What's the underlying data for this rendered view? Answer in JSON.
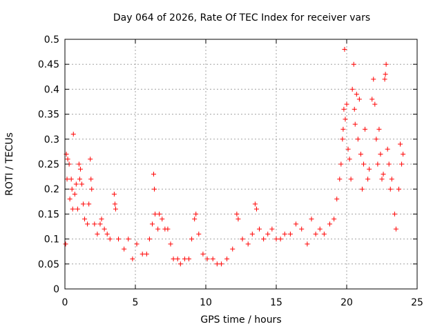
{
  "chart_data": {
    "type": "scatter",
    "title": "Day 064 of 2026, Rate Of TEC Index for receiver vars",
    "xlabel": "GPS time / hours",
    "ylabel": "ROTI / TECUs",
    "xlim": [
      0,
      25
    ],
    "ylim": [
      0,
      0.5
    ],
    "x_ticks": [
      "0",
      "5",
      "10",
      "15",
      "20",
      "25"
    ],
    "y_ticks": [
      "0",
      "0.05",
      "0.1",
      "0.15",
      "0.2",
      "0.25",
      "0.3",
      "0.35",
      "0.4",
      "0.45",
      "0.5"
    ],
    "grid": true,
    "marker": "+",
    "color": "#ff0000",
    "series": [
      {
        "points": [
          [
            0.05,
            0.09
          ],
          [
            0.1,
            0.27
          ],
          [
            0.15,
            0.22
          ],
          [
            0.2,
            0.26
          ],
          [
            0.3,
            0.25
          ],
          [
            0.35,
            0.18
          ],
          [
            0.45,
            0.22
          ],
          [
            0.5,
            0.2
          ],
          [
            0.55,
            0.16
          ],
          [
            0.6,
            0.31
          ],
          [
            0.7,
            0.19
          ],
          [
            0.8,
            0.21
          ],
          [
            0.9,
            0.16
          ],
          [
            1.0,
            0.25
          ],
          [
            1.05,
            0.22
          ],
          [
            1.1,
            0.24
          ],
          [
            1.2,
            0.21
          ],
          [
            1.3,
            0.17
          ],
          [
            1.4,
            0.14
          ],
          [
            1.6,
            0.13
          ],
          [
            1.7,
            0.17
          ],
          [
            1.8,
            0.26
          ],
          [
            1.85,
            0.22
          ],
          [
            1.9,
            0.2
          ],
          [
            2.1,
            0.13
          ],
          [
            2.3,
            0.11
          ],
          [
            2.5,
            0.13
          ],
          [
            2.6,
            0.14
          ],
          [
            2.8,
            0.12
          ],
          [
            3.0,
            0.11
          ],
          [
            3.2,
            0.1
          ],
          [
            3.5,
            0.19
          ],
          [
            3.55,
            0.17
          ],
          [
            3.6,
            0.16
          ],
          [
            3.8,
            0.1
          ],
          [
            4.2,
            0.08
          ],
          [
            4.5,
            0.1
          ],
          [
            4.8,
            0.06
          ],
          [
            5.1,
            0.09
          ],
          [
            5.5,
            0.07
          ],
          [
            5.8,
            0.07
          ],
          [
            6.0,
            0.1
          ],
          [
            6.2,
            0.13
          ],
          [
            6.3,
            0.23
          ],
          [
            6.35,
            0.2
          ],
          [
            6.4,
            0.15
          ],
          [
            6.6,
            0.12
          ],
          [
            6.7,
            0.15
          ],
          [
            6.9,
            0.14
          ],
          [
            7.1,
            0.12
          ],
          [
            7.3,
            0.12
          ],
          [
            7.5,
            0.09
          ],
          [
            7.7,
            0.06
          ],
          [
            8.0,
            0.06
          ],
          [
            8.2,
            0.05
          ],
          [
            8.5,
            0.06
          ],
          [
            8.8,
            0.06
          ],
          [
            9.0,
            0.1
          ],
          [
            9.2,
            0.14
          ],
          [
            9.3,
            0.15
          ],
          [
            9.5,
            0.11
          ],
          [
            9.8,
            0.07
          ],
          [
            10.1,
            0.06
          ],
          [
            10.5,
            0.06
          ],
          [
            10.8,
            0.05
          ],
          [
            11.1,
            0.05
          ],
          [
            11.5,
            0.06
          ],
          [
            11.9,
            0.08
          ],
          [
            12.2,
            0.15
          ],
          [
            12.3,
            0.14
          ],
          [
            12.6,
            0.1
          ],
          [
            13.0,
            0.09
          ],
          [
            13.3,
            0.11
          ],
          [
            13.5,
            0.17
          ],
          [
            13.6,
            0.16
          ],
          [
            13.8,
            0.12
          ],
          [
            14.1,
            0.1
          ],
          [
            14.4,
            0.11
          ],
          [
            14.7,
            0.12
          ],
          [
            15.0,
            0.1
          ],
          [
            15.3,
            0.1
          ],
          [
            15.6,
            0.11
          ],
          [
            16.0,
            0.11
          ],
          [
            16.4,
            0.13
          ],
          [
            16.8,
            0.12
          ],
          [
            17.2,
            0.09
          ],
          [
            17.5,
            0.14
          ],
          [
            17.8,
            0.11
          ],
          [
            18.1,
            0.12
          ],
          [
            18.4,
            0.11
          ],
          [
            18.8,
            0.13
          ],
          [
            19.1,
            0.14
          ],
          [
            19.3,
            0.18
          ],
          [
            19.5,
            0.22
          ],
          [
            19.6,
            0.25
          ],
          [
            19.7,
            0.3
          ],
          [
            19.75,
            0.32
          ],
          [
            19.8,
            0.36
          ],
          [
            19.85,
            0.48
          ],
          [
            19.9,
            0.34
          ],
          [
            20.0,
            0.37
          ],
          [
            20.1,
            0.28
          ],
          [
            20.2,
            0.26
          ],
          [
            20.3,
            0.22
          ],
          [
            20.4,
            0.4
          ],
          [
            20.5,
            0.45
          ],
          [
            20.55,
            0.36
          ],
          [
            20.6,
            0.33
          ],
          [
            20.7,
            0.39
          ],
          [
            20.8,
            0.3
          ],
          [
            20.9,
            0.38
          ],
          [
            21.0,
            0.27
          ],
          [
            21.1,
            0.2
          ],
          [
            21.2,
            0.25
          ],
          [
            21.3,
            0.32
          ],
          [
            21.5,
            0.22
          ],
          [
            21.6,
            0.24
          ],
          [
            21.8,
            0.38
          ],
          [
            21.9,
            0.42
          ],
          [
            22.0,
            0.37
          ],
          [
            22.1,
            0.3
          ],
          [
            22.2,
            0.25
          ],
          [
            22.3,
            0.32
          ],
          [
            22.4,
            0.27
          ],
          [
            22.5,
            0.22
          ],
          [
            22.6,
            0.23
          ],
          [
            22.7,
            0.42
          ],
          [
            22.75,
            0.43
          ],
          [
            22.8,
            0.45
          ],
          [
            22.9,
            0.28
          ],
          [
            23.0,
            0.25
          ],
          [
            23.1,
            0.2
          ],
          [
            23.2,
            0.22
          ],
          [
            23.4,
            0.15
          ],
          [
            23.5,
            0.12
          ],
          [
            23.7,
            0.2
          ],
          [
            23.8,
            0.29
          ],
          [
            23.9,
            0.25
          ],
          [
            24.0,
            0.27
          ]
        ]
      }
    ]
  }
}
